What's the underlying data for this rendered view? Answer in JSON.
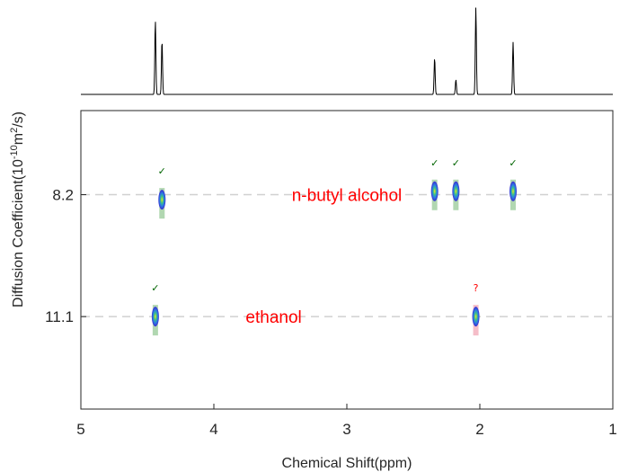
{
  "chart_data": {
    "type": "scatter",
    "title": "",
    "xlabel": "Chemical Shift(ppm)",
    "ylabel_prefix": "Diffusion Coefficient(10",
    "ylabel_exp1": "-10",
    "ylabel_mid": "m",
    "ylabel_exp2": "2",
    "ylabel_suffix": "/s)",
    "xlim": [
      5,
      1
    ],
    "x_reversed": true,
    "ylim": [
      13.3,
      6.2
    ],
    "y_reversed": true,
    "x_ticks": [
      5,
      4,
      3,
      2,
      1
    ],
    "x_tick_labels": [
      "5",
      "4",
      "3",
      "2",
      "1"
    ],
    "y_ticks": [
      8.2,
      11.1
    ],
    "y_tick_labels": [
      "8.2",
      "11.1"
    ],
    "grid": "dashed lines at diffusion levels",
    "spectrum_peaks": [
      {
        "x": 4.44,
        "height": 0.85
      },
      {
        "x": 4.39,
        "height": 0.62
      },
      {
        "x": 2.34,
        "height": 0.42
      },
      {
        "x": 2.18,
        "height": 0.17
      },
      {
        "x": 2.03,
        "height": 1.0
      },
      {
        "x": 1.75,
        "height": 0.6
      }
    ],
    "groups": [
      {
        "label": "n-butyl alcohol",
        "label_color": "#ff0000",
        "label_x": 3.0,
        "diffusion": 8.2,
        "signals": [
          {
            "x": 4.39,
            "y": 8.32,
            "status": "✓",
            "status_color": "#006400",
            "band_color": "#a9d3a9"
          },
          {
            "x": 2.34,
            "y": 8.12,
            "status": "✓",
            "status_color": "#006400",
            "band_color": "#a9d3a9"
          },
          {
            "x": 2.18,
            "y": 8.12,
            "status": "✓",
            "status_color": "#006400",
            "band_color": "#a9d3a9"
          },
          {
            "x": 1.75,
            "y": 8.12,
            "status": "✓",
            "status_color": "#006400",
            "band_color": "#a9d3a9"
          }
        ]
      },
      {
        "label": "ethanol",
        "label_color": "#ff0000",
        "label_x": 3.55,
        "diffusion": 11.1,
        "signals": [
          {
            "x": 4.44,
            "y": 11.1,
            "status": "✓",
            "status_color": "#006400",
            "band_color": "#a9d3a9"
          },
          {
            "x": 2.03,
            "y": 11.1,
            "status": "?",
            "status_color": "#ff0000",
            "band_color": "#f4b6c2"
          }
        ]
      }
    ]
  }
}
